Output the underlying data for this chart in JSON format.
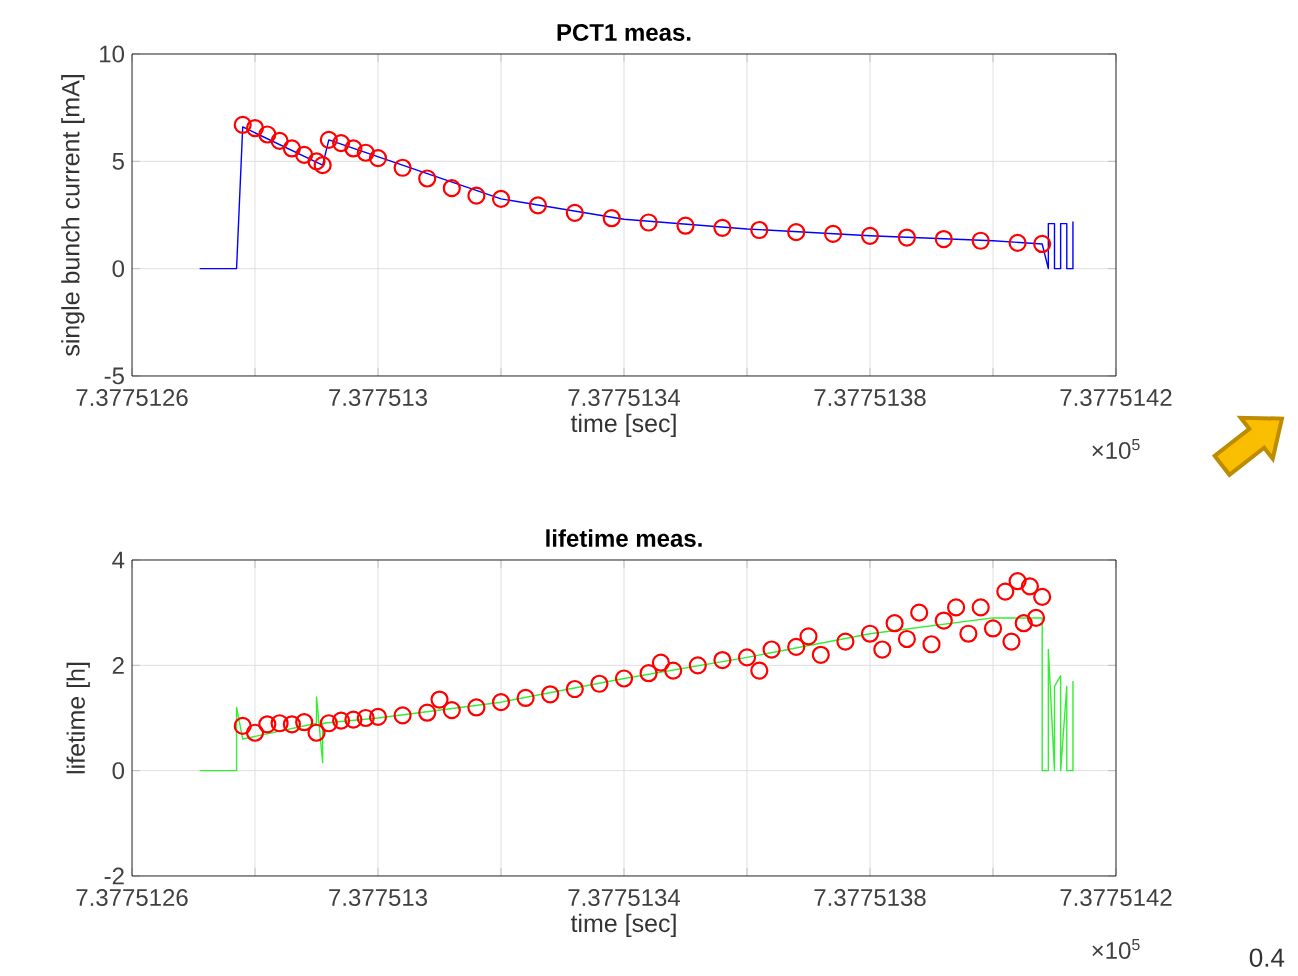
{
  "chart_data": [
    {
      "type": "line",
      "title": "PCT1 meas.",
      "xlabel": "time [sec]",
      "ylabel": "single bunch current [mA]",
      "xlim": [
        7.3775126,
        7.3775142
      ],
      "ylim": [
        -5,
        10
      ],
      "xticks": [
        7.3775126,
        {
          "value": 7.3775128,
          "label": null
        },
        7.377513,
        {
          "value": 7.3775132,
          "label": null
        },
        7.3775134,
        {
          "value": 7.3775136,
          "label": null
        },
        7.3775138,
        {
          "value": 7.377514,
          "label": null
        },
        7.3775142
      ],
      "yticks": [
        -5,
        0,
        5,
        10
      ],
      "grid": true,
      "annotations": [
        "×10$^{5}$"
      ],
      "series": [
        {
          "color": "#0000ff",
          "marker": "none",
          "x": [
            7.37751271,
            7.37751277,
            7.37751278,
            7.37751291,
            7.37751292,
            7.3775132,
            7.3775134,
            7.3775136,
            7.3775138,
            7.377514,
            7.37751408,
            7.37751409,
            7.37751409,
            7.3775141,
            7.3775141,
            7.37751411,
            7.37751411,
            7.37751412,
            7.37751412,
            7.37751413,
            7.37751413
          ],
          "values": [
            0,
            0,
            6.6,
            4.82,
            6.0,
            3.25,
            2.3,
            1.85,
            1.53,
            1.3,
            1.15,
            0,
            2.1,
            2.1,
            0,
            0,
            2.1,
            2.1,
            0,
            0,
            2.2
          ]
        },
        {
          "type": "scatter",
          "color": "#ff0000",
          "marker": "circle",
          "x": [
            7.37751278,
            7.3775128,
            7.37751282,
            7.37751284,
            7.37751286,
            7.37751288,
            7.3775129,
            7.37751291,
            7.37751292,
            7.37751294,
            7.37751296,
            7.37751298,
            7.377513,
            7.37751304,
            7.37751308,
            7.37751312,
            7.37751316,
            7.3775132,
            7.37751326,
            7.37751332,
            7.37751338,
            7.37751344,
            7.3775135,
            7.37751356,
            7.37751362,
            7.37751368,
            7.37751374,
            7.3775138,
            7.37751386,
            7.37751392,
            7.37751398,
            7.37751404,
            7.37751408
          ],
          "values": [
            6.7,
            6.55,
            6.25,
            5.95,
            5.6,
            5.3,
            5.0,
            4.82,
            6.0,
            5.85,
            5.6,
            5.4,
            5.15,
            4.7,
            4.2,
            3.75,
            3.4,
            3.25,
            2.95,
            2.6,
            2.35,
            2.15,
            2.0,
            1.9,
            1.8,
            1.7,
            1.62,
            1.53,
            1.45,
            1.38,
            1.3,
            1.2,
            1.15
          ]
        }
      ]
    },
    {
      "type": "line",
      "title": "lifetime meas.",
      "xlabel": "time [sec]",
      "ylabel": "lifetime [h]",
      "xlim": [
        7.3775126,
        7.3775142
      ],
      "ylim": [
        -2,
        4
      ],
      "xticks": [
        7.3775126,
        {
          "value": 7.3775128,
          "label": null
        },
        7.377513,
        {
          "value": 7.3775132,
          "label": null
        },
        7.3775134,
        {
          "value": 7.3775136,
          "label": null
        },
        7.3775138,
        {
          "value": 7.377514,
          "label": null
        },
        7.3775142
      ],
      "yticks": [
        -2,
        0,
        2,
        4
      ],
      "grid": true,
      "annotations": [
        "×10$^{5}$",
        "0.4"
      ],
      "series": [
        {
          "color": "#33ee33",
          "marker": "none",
          "x": [
            7.37751271,
            7.37751277,
            7.37751277,
            7.37751278,
            7.3775129,
            7.3775129,
            7.37751291,
            7.37751291,
            7.377513,
            7.3775132,
            7.3775134,
            7.3775136,
            7.3775138,
            7.377514,
            7.37751408,
            7.37751408,
            7.37751409,
            7.37751409,
            7.3775141,
            7.3775141,
            7.37751411,
            7.37751411,
            7.37751412,
            7.37751412,
            7.37751413,
            7.37751413
          ],
          "values": [
            0,
            0,
            1.2,
            0.6,
            0.9,
            1.4,
            0.15,
            0.9,
            1.0,
            1.3,
            1.75,
            2.15,
            2.6,
            2.9,
            2.9,
            0,
            0,
            2.3,
            0,
            1.6,
            1.8,
            0,
            1.6,
            0,
            0,
            1.7
          ]
        },
        {
          "type": "scatter",
          "color": "#ff0000",
          "marker": "circle",
          "x": [
            7.37751278,
            7.3775128,
            7.37751282,
            7.37751284,
            7.37751286,
            7.37751288,
            7.3775129,
            7.37751292,
            7.37751294,
            7.37751296,
            7.37751298,
            7.377513,
            7.37751304,
            7.37751308,
            7.3775131,
            7.37751312,
            7.37751316,
            7.3775132,
            7.37751324,
            7.37751328,
            7.37751332,
            7.37751336,
            7.3775134,
            7.37751344,
            7.37751346,
            7.37751348,
            7.37751352,
            7.37751356,
            7.3775136,
            7.37751362,
            7.37751364,
            7.37751368,
            7.3775137,
            7.37751372,
            7.37751376,
            7.3775138,
            7.37751382,
            7.37751384,
            7.37751386,
            7.37751388,
            7.3775139,
            7.37751392,
            7.37751394,
            7.37751396,
            7.37751398,
            7.377514,
            7.37751402,
            7.37751403,
            7.37751404,
            7.37751405,
            7.37751406,
            7.37751407,
            7.37751408
          ],
          "values": [
            0.85,
            0.72,
            0.88,
            0.9,
            0.88,
            0.92,
            0.72,
            0.9,
            0.95,
            0.97,
            1.0,
            1.02,
            1.05,
            1.1,
            1.35,
            1.15,
            1.2,
            1.3,
            1.38,
            1.45,
            1.55,
            1.65,
            1.75,
            1.85,
            2.05,
            1.9,
            2.0,
            2.1,
            2.15,
            1.9,
            2.3,
            2.35,
            2.55,
            2.2,
            2.45,
            2.6,
            2.3,
            2.8,
            2.5,
            3.0,
            2.4,
            2.85,
            3.1,
            2.6,
            3.1,
            2.7,
            3.4,
            2.45,
            3.6,
            2.8,
            3.5,
            2.9,
            3.3
          ]
        }
      ]
    }
  ]
}
